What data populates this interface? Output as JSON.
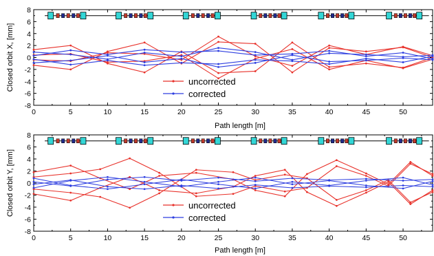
{
  "chart_data": [
    {
      "type": "line",
      "ylabel": "Closed orbit X, [mm]",
      "xlabel": "Path length [m]",
      "xlim": [
        0,
        54
      ],
      "ylim": [
        -8,
        8
      ],
      "xticks": [
        0,
        5,
        10,
        15,
        20,
        25,
        30,
        35,
        40,
        45,
        50
      ],
      "yticks": [
        -8,
        -6,
        -4,
        -2,
        0,
        2,
        4,
        6,
        8
      ],
      "legend": {
        "placement": "lower-center",
        "entries": [
          "uncorrected",
          "corrected"
        ]
      },
      "colors": {
        "uncorrected": "#e8312a",
        "corrected": "#2d3ee0",
        "quadrupole": "#33d6d6",
        "element_red": "#c0392b",
        "element_blue": "#1f2a8c"
      },
      "lattice_cells_x": [
        2.3,
        11.5,
        20.6,
        29.8,
        38.9,
        48.1
      ],
      "lattice_cell_end_x": [
        6.7,
        15.8,
        24.9,
        33.9,
        43.0,
        52.2
      ],
      "lattice_line_y": 7,
      "series": [
        {
          "name": "uncorrected",
          "x": [
            0,
            5,
            10,
            15,
            20,
            25,
            30,
            35,
            40,
            45,
            50,
            54
          ],
          "y": [
            -0.4,
            -0.6,
            0.8,
            0.6,
            -0.4,
            3.5,
            0.2,
            -1.4,
            2.0,
            0.5,
            1.8,
            0.3
          ]
        },
        {
          "name": "",
          "x": [
            0,
            5,
            10,
            15,
            20,
            25,
            30,
            35,
            40,
            45,
            50,
            54
          ],
          "y": [
            0.4,
            0.6,
            -0.8,
            -0.6,
            0.4,
            -3.5,
            -0.2,
            1.4,
            -2.0,
            -0.5,
            -1.8,
            -0.3
          ]
        },
        {
          "name": "",
          "x": [
            0,
            5,
            10,
            15,
            20,
            25,
            30,
            35,
            40,
            45,
            50,
            54
          ],
          "y": [
            -1.3,
            -2.0,
            1.0,
            2.5,
            -1.0,
            2.6,
            2.3,
            -2.5,
            1.6,
            1.0,
            1.7,
            0.0
          ]
        },
        {
          "name": "",
          "x": [
            0,
            5,
            10,
            15,
            20,
            25,
            30,
            35,
            40,
            45,
            50,
            54
          ],
          "y": [
            1.3,
            2.0,
            -1.0,
            -2.5,
            1.0,
            -2.6,
            -2.3,
            2.5,
            -1.6,
            -1.0,
            -1.7,
            0.0
          ]
        },
        {
          "name": "corrected",
          "x": [
            0,
            5,
            10,
            15,
            20,
            25,
            30,
            35,
            40,
            45,
            50,
            54
          ],
          "y": [
            0.3,
            1.2,
            0.5,
            1.3,
            0.9,
            1.1,
            0.4,
            0.6,
            1.1,
            0.2,
            0.8,
            -0.2
          ]
        },
        {
          "name": "",
          "x": [
            0,
            5,
            10,
            15,
            20,
            25,
            30,
            35,
            40,
            45,
            50,
            54
          ],
          "y": [
            -0.3,
            -1.2,
            -0.5,
            -1.3,
            -0.9,
            -1.1,
            -0.4,
            -0.6,
            -1.1,
            -0.2,
            -0.8,
            0.2
          ]
        },
        {
          "name": "",
          "x": [
            0,
            5,
            10,
            15,
            20,
            25,
            30,
            35,
            40,
            45,
            50,
            54
          ],
          "y": [
            0.9,
            0.5,
            -0.3,
            0.8,
            0.2,
            1.6,
            0.9,
            -0.4,
            0.7,
            0.5,
            0.1,
            0.4
          ]
        },
        {
          "name": "",
          "x": [
            0,
            5,
            10,
            15,
            20,
            25,
            30,
            35,
            40,
            45,
            50,
            54
          ],
          "y": [
            -0.9,
            -0.5,
            0.3,
            -0.8,
            -0.2,
            -1.6,
            -0.9,
            0.4,
            -0.7,
            -0.5,
            -0.1,
            -0.4
          ]
        }
      ]
    },
    {
      "type": "line",
      "ylabel": "Closed orbit Y, [mm]",
      "xlabel": "Path length [m]",
      "xlim": [
        0,
        54
      ],
      "ylim": [
        -8,
        8
      ],
      "xticks": [
        0,
        5,
        10,
        15,
        20,
        25,
        30,
        35,
        40,
        45,
        50
      ],
      "yticks": [
        -8,
        -6,
        -4,
        -2,
        0,
        2,
        4,
        6,
        8
      ],
      "legend": {
        "placement": "lower-center",
        "entries": [
          "uncorrected",
          "corrected"
        ]
      },
      "colors": {
        "uncorrected": "#e8312a",
        "corrected": "#2d3ee0",
        "quadrupole": "#33d6d6",
        "element_red": "#c0392b",
        "element_blue": "#1f2a8c"
      },
      "lattice_cells_x": [
        2.3,
        11.5,
        20.6,
        29.8,
        38.9,
        48.1
      ],
      "lattice_cell_end_x": [
        6.7,
        15.8,
        24.9,
        33.9,
        43.0,
        52.2
      ],
      "lattice_line_y": 7,
      "series": [
        {
          "name": "uncorrected",
          "x": [
            0,
            5,
            9,
            13,
            17,
            22,
            27,
            30,
            34,
            37,
            41,
            45,
            48,
            51,
            54
          ],
          "y": [
            1.8,
            2.9,
            0.8,
            -1.0,
            1.2,
            1.7,
            0.6,
            -1.2,
            -2.2,
            1.5,
            3.8,
            1.6,
            -0.2,
            3.5,
            1.2
          ]
        },
        {
          "name": "",
          "x": [
            0,
            5,
            9,
            13,
            17,
            22,
            27,
            30,
            34,
            37,
            41,
            45,
            48,
            51,
            54
          ],
          "y": [
            -1.8,
            -2.9,
            -0.8,
            1.0,
            -1.2,
            -1.7,
            -0.6,
            1.2,
            2.2,
            -1.5,
            -3.8,
            -1.6,
            0.2,
            -3.5,
            -1.2
          ]
        },
        {
          "name": "",
          "x": [
            0,
            5,
            9,
            13,
            17,
            22,
            27,
            30,
            34,
            37,
            41,
            45,
            48,
            51,
            54
          ],
          "y": [
            -1.0,
            -1.6,
            -2.3,
            -4.1,
            -1.7,
            2.2,
            1.8,
            0.5,
            1.4,
            0.8,
            -2.8,
            -1.2,
            0.5,
            -3.2,
            -1.5
          ]
        },
        {
          "name": "",
          "x": [
            0,
            5,
            9,
            13,
            17,
            22,
            27,
            30,
            34,
            37,
            41,
            45,
            48,
            51,
            54
          ],
          "y": [
            1.0,
            1.6,
            2.3,
            4.1,
            1.7,
            -2.2,
            -1.8,
            -0.5,
            -1.4,
            -0.8,
            2.8,
            1.2,
            -0.5,
            3.2,
            1.5
          ]
        },
        {
          "name": "corrected",
          "x": [
            0,
            5,
            10,
            15,
            20,
            25,
            30,
            35,
            40,
            45,
            50,
            54
          ],
          "y": [
            0.2,
            -0.5,
            0.6,
            1.0,
            0.4,
            0.9,
            0.3,
            0.8,
            0.5,
            0.7,
            0.4,
            0.6
          ]
        },
        {
          "name": "",
          "x": [
            0,
            5,
            10,
            15,
            20,
            25,
            30,
            35,
            40,
            45,
            50,
            54
          ],
          "y": [
            -0.2,
            0.5,
            -0.6,
            -1.0,
            -0.4,
            -0.9,
            -0.3,
            -0.8,
            -0.5,
            -0.7,
            -0.4,
            -0.6
          ]
        },
        {
          "name": "",
          "x": [
            0,
            5,
            10,
            15,
            20,
            25,
            30,
            35,
            40,
            45,
            50,
            54
          ],
          "y": [
            -0.8,
            0.4,
            1.0,
            0.2,
            -0.6,
            0.2,
            0.9,
            -0.2,
            0.4,
            -0.4,
            -0.9,
            0.3
          ]
        },
        {
          "name": "",
          "x": [
            0,
            5,
            10,
            15,
            20,
            25,
            30,
            35,
            40,
            45,
            50,
            54
          ],
          "y": [
            0.8,
            -0.4,
            -1.0,
            -0.2,
            0.6,
            -0.2,
            -0.9,
            0.2,
            -0.4,
            0.4,
            0.9,
            -0.3
          ]
        }
      ]
    }
  ]
}
